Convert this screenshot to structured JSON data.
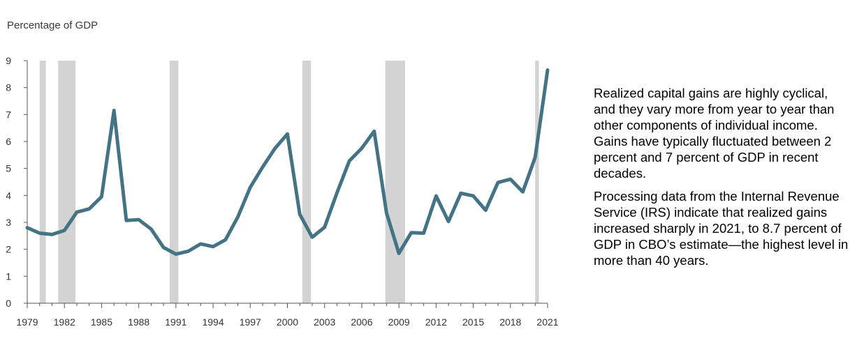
{
  "chart_data": {
    "type": "line",
    "ylabel": "Percentage of GDP",
    "ylim": [
      0,
      9
    ],
    "yticks": [
      0,
      1,
      2,
      3,
      4,
      5,
      6,
      7,
      8,
      9
    ],
    "xlim": [
      1979,
      2021
    ],
    "xticks": [
      1979,
      1982,
      1985,
      1988,
      1991,
      1994,
      1997,
      2000,
      2003,
      2006,
      2009,
      2012,
      2015,
      2018,
      2021
    ],
    "recessions": [
      [
        1980.0,
        1980.5
      ],
      [
        1981.5,
        1982.9
      ],
      [
        1990.5,
        1991.2
      ],
      [
        2001.2,
        2001.9
      ],
      [
        2007.9,
        2009.5
      ],
      [
        2020.0,
        2020.3
      ]
    ],
    "series": [
      {
        "color": "#457386",
        "x": [
          1979,
          1980,
          1981,
          1982,
          1983,
          1984,
          1985,
          1986,
          1987,
          1988,
          1989,
          1990,
          1991,
          1992,
          1993,
          1994,
          1995,
          1996,
          1997,
          1998,
          1999,
          2000,
          2001,
          2002,
          2003,
          2004,
          2005,
          2006,
          2007,
          2008,
          2009,
          2010,
          2011,
          2012,
          2013,
          2014,
          2015,
          2016,
          2017,
          2018,
          2019,
          2020,
          2021
        ],
        "values": [
          2.8,
          2.6,
          2.55,
          2.7,
          3.38,
          3.5,
          3.95,
          7.15,
          3.07,
          3.1,
          2.75,
          2.07,
          1.82,
          1.93,
          2.2,
          2.1,
          2.35,
          3.2,
          4.3,
          5.05,
          5.75,
          6.28,
          3.3,
          2.45,
          2.82,
          4.1,
          5.28,
          5.75,
          6.38,
          3.35,
          1.85,
          2.62,
          2.6,
          3.98,
          3.03,
          4.08,
          3.98,
          3.45,
          4.48,
          4.6,
          4.13,
          5.42,
          8.65
        ]
      }
    ],
    "recession_color": "#d3d3d3"
  },
  "text": {
    "paragraphs": [
      "Realized capital gains are highly cyclical, and they vary more from year to year than other components of individual income. Gains have typically fluctuated between 2 percent and 7 percent of GDP in recent decades.",
      "Processing data from the Internal Revenue Service (IRS) indicate that realized gains increased sharply in 2021, to 8.7 percent of GDP in CBO’s estimate—the highest level in more than 40 years."
    ]
  }
}
